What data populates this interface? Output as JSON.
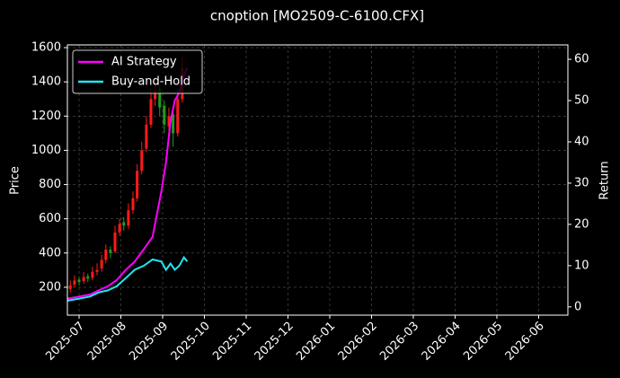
{
  "chart_data": {
    "type": "candlestick",
    "title": "cnoption [MO2509-C-6100.CFX]",
    "y_label": "Price",
    "y2_label": "Return",
    "grid": true,
    "legend": "upper left",
    "up_color": "#ff1a1a",
    "down_color": "#1f9e1f",
    "xlim": [
      -0.28,
      11.7
    ],
    "xticks": [
      {
        "value": 0,
        "label": "2025-07"
      },
      {
        "value": 1,
        "label": "2025-08"
      },
      {
        "value": 2,
        "label": "2025-09"
      },
      {
        "value": 3,
        "label": "2025-10"
      },
      {
        "value": 4,
        "label": "2025-11"
      },
      {
        "value": 5,
        "label": "2025-12"
      },
      {
        "value": 6,
        "label": "2026-01"
      },
      {
        "value": 7,
        "label": "2026-02"
      },
      {
        "value": 8,
        "label": "2026-03"
      },
      {
        "value": 9,
        "label": "2026-04"
      },
      {
        "value": 10,
        "label": "2026-05"
      },
      {
        "value": 11,
        "label": "2026-06"
      }
    ],
    "ylim": [
      37,
      1616
    ],
    "yticks": [
      200,
      400,
      600,
      800,
      1000,
      1200,
      1400,
      1600
    ],
    "y2lim": [
      -2,
      63.5
    ],
    "y2ticks": [
      0,
      10,
      20,
      30,
      40,
      50,
      60
    ],
    "x": [
      -0.21,
      -0.11,
      0,
      0.11,
      0.21,
      0.32,
      0.43,
      0.54,
      0.64,
      0.75,
      0.86,
      0.97,
      1.07,
      1.18,
      1.29,
      1.39,
      1.5,
      1.61,
      1.72,
      1.82,
      1.93,
      2.04,
      2.15,
      2.25,
      2.36,
      2.47
    ],
    "open": [
      190,
      215,
      245,
      235,
      265,
      255,
      290,
      310,
      360,
      420,
      410,
      520,
      580,
      560,
      650,
      720,
      880,
      1010,
      1150,
      1300,
      1360,
      1260,
      1140,
      1210,
      1100,
      1300
    ],
    "high": [
      240,
      270,
      260,
      290,
      280,
      320,
      340,
      390,
      450,
      440,
      560,
      600,
      610,
      690,
      760,
      920,
      1050,
      1200,
      1360,
      1420,
      1380,
      1290,
      1250,
      1240,
      1360,
      1550
    ],
    "low": [
      170,
      200,
      210,
      220,
      230,
      240,
      270,
      290,
      340,
      370,
      400,
      500,
      530,
      540,
      630,
      700,
      860,
      990,
      1130,
      1260,
      1200,
      1100,
      1080,
      1020,
      1080,
      1280
    ],
    "close": [
      210,
      240,
      230,
      260,
      250,
      290,
      300,
      360,
      420,
      400,
      520,
      570,
      560,
      650,
      720,
      880,
      1000,
      1150,
      1300,
      1350,
      1250,
      1150,
      1200,
      1100,
      1300,
      1480
    ],
    "series": [
      {
        "name": "AI Strategy",
        "color": "#ff00ff",
        "axis": "y2",
        "x": [
          -0.28,
          0,
          0.26,
          0.47,
          0.69,
          0.9,
          1.12,
          1.33,
          1.55,
          1.76,
          1.97,
          2.08,
          2.19,
          2.29,
          2.4,
          2.51,
          2.59
        ],
        "values": [
          2,
          2.5,
          3,
          4,
          5,
          6.5,
          9,
          11,
          14,
          17,
          28,
          35,
          45,
          50,
          52,
          56,
          58
        ]
      },
      {
        "name": "Buy-and-Hold",
        "color": "#22e5f0",
        "axis": "y2",
        "x": [
          -0.28,
          0,
          0.26,
          0.47,
          0.69,
          0.9,
          1.12,
          1.33,
          1.55,
          1.76,
          1.97,
          2.08,
          2.19,
          2.29,
          2.4,
          2.51,
          2.59
        ],
        "values": [
          1.5,
          2,
          2.5,
          3.5,
          4,
          5,
          7,
          9,
          10,
          11.5,
          11,
          9,
          10.5,
          9,
          10,
          12,
          11
        ]
      }
    ]
  }
}
